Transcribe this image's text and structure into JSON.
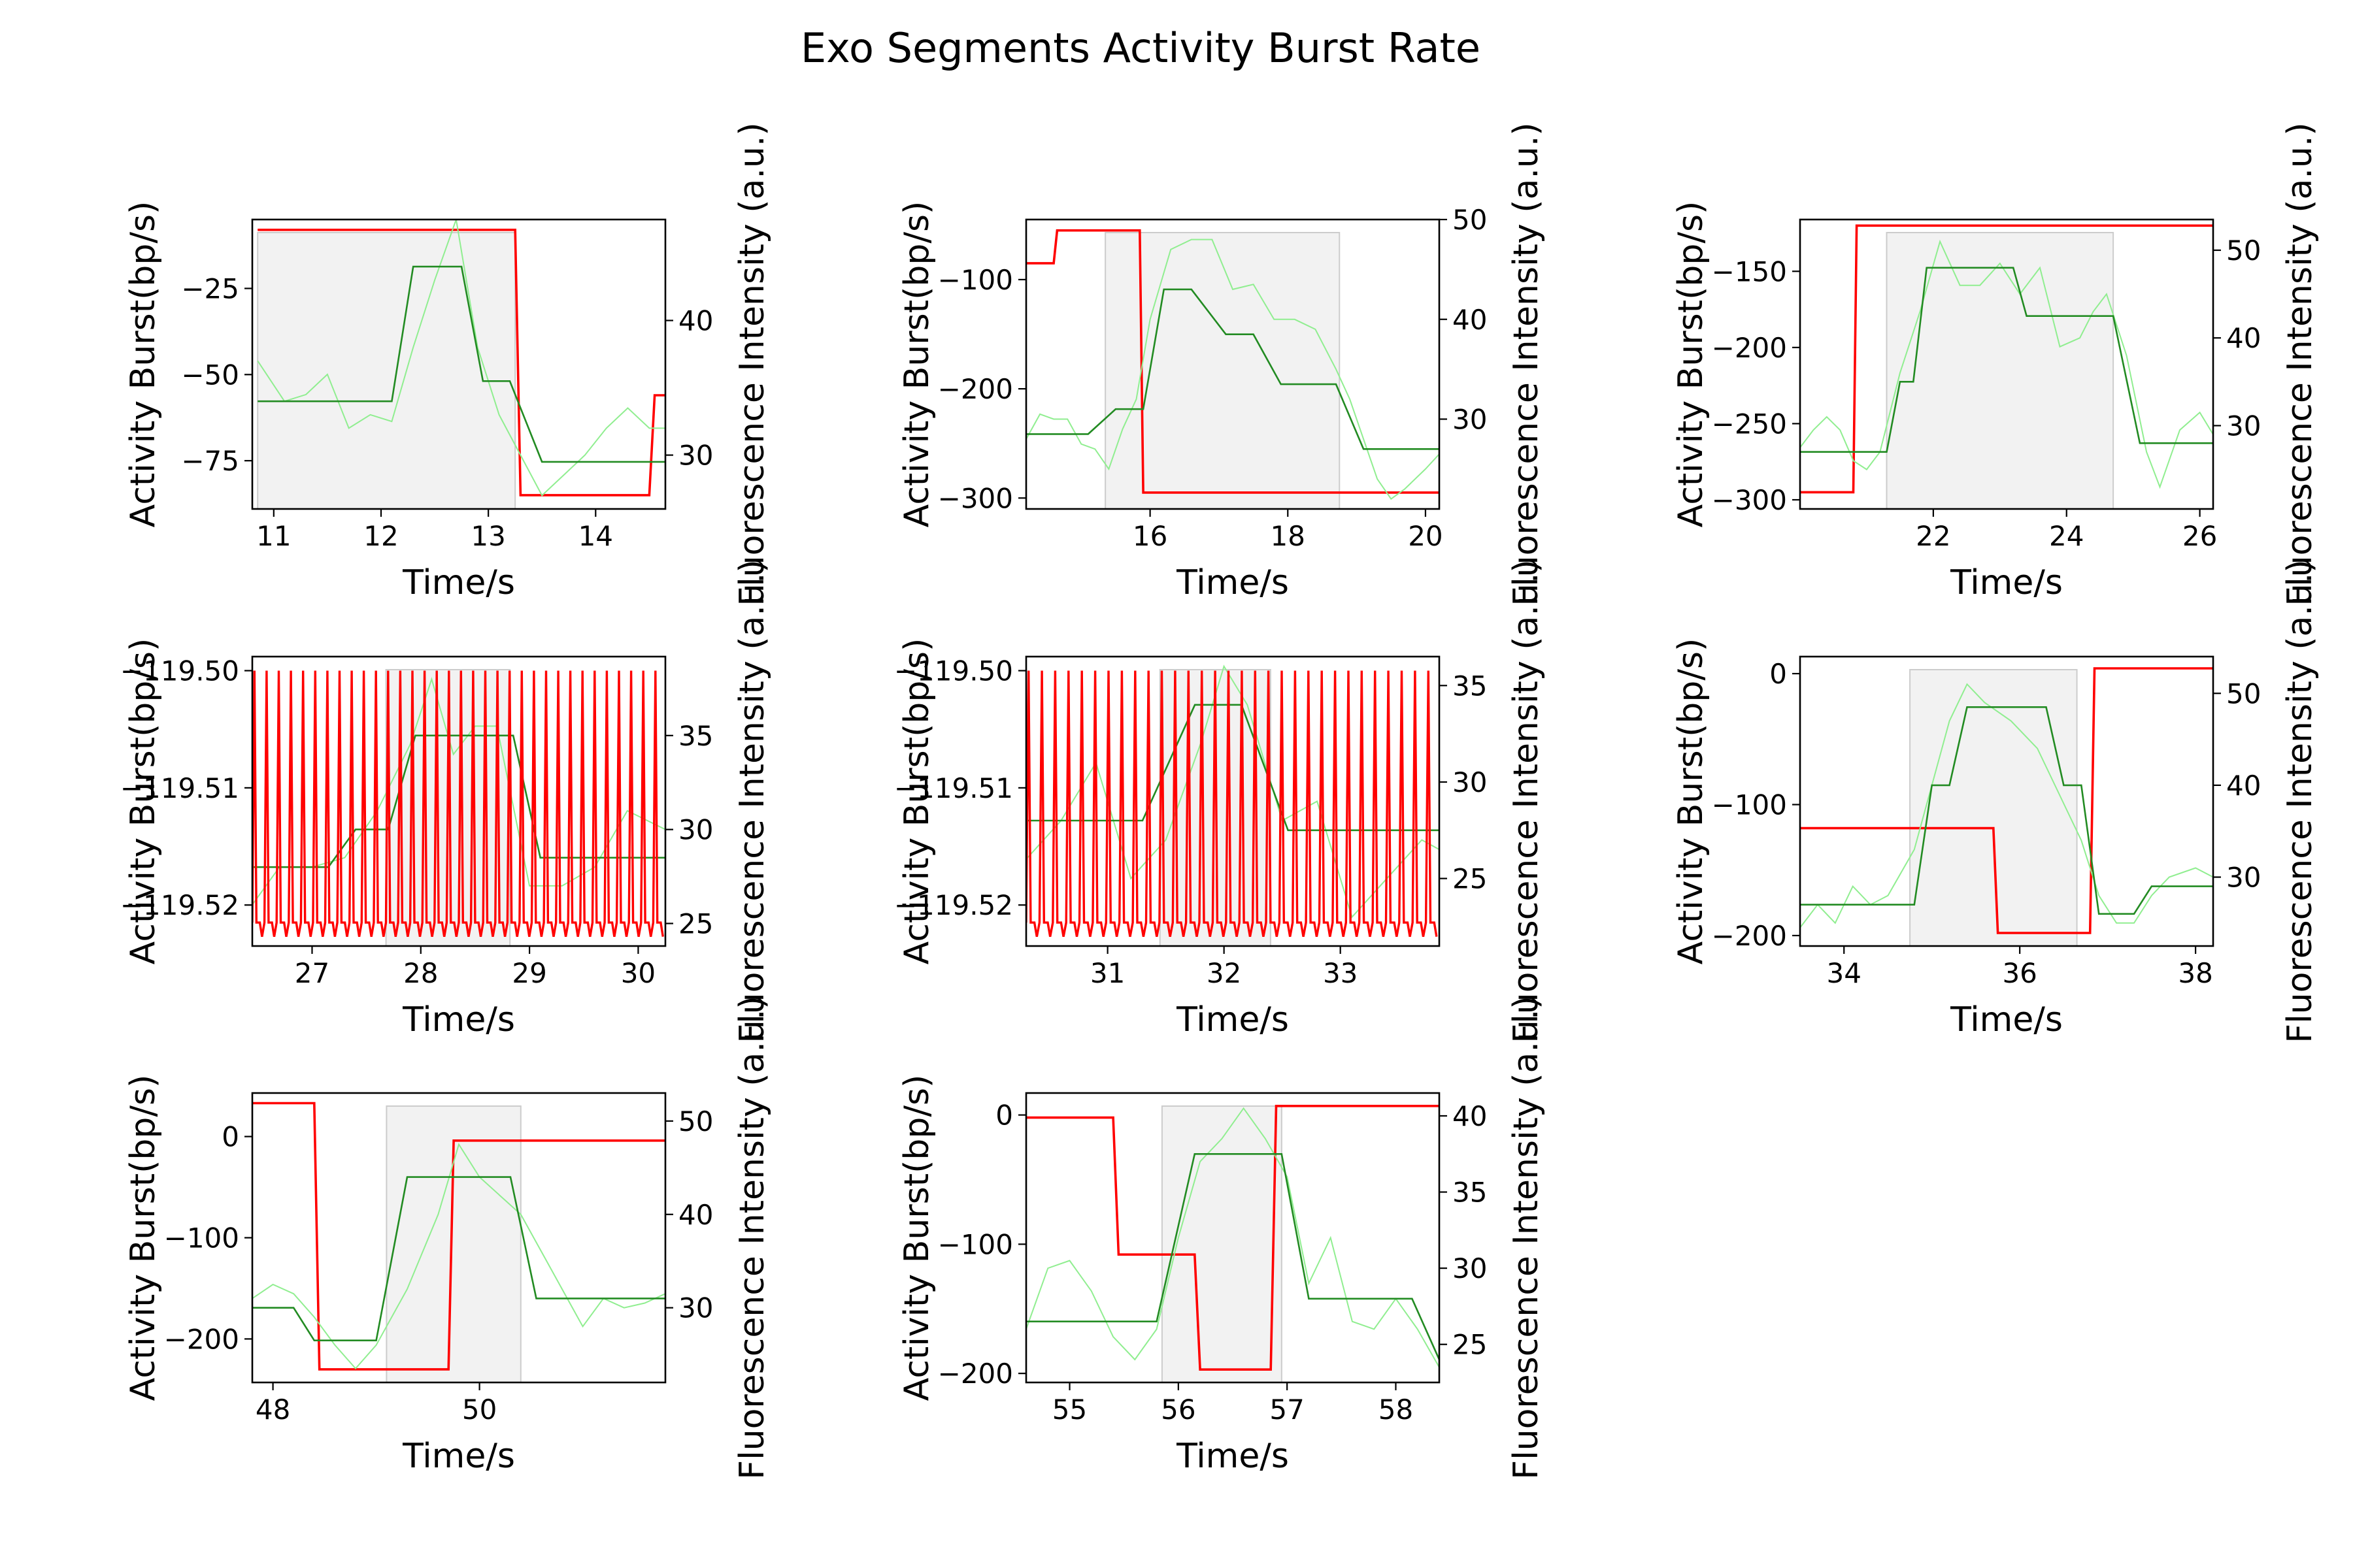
{
  "title": "Exo Segments Activity Burst Rate",
  "colors": {
    "burst": "#ff0000",
    "fluor_raw": "#90ee90",
    "fluor_step": "#228b22",
    "shade": "#e5e5e5",
    "axes": "#000000"
  },
  "chart_data": [
    {
      "type": "line",
      "xlabel": "Time/s",
      "ylabel_left": "Activity Burst(bp/s)",
      "ylabel_right": "Fluorescence Intensity (a.u.)",
      "xlim": [
        10.8,
        14.65
      ],
      "ylim_left": [
        -89,
        -5
      ],
      "ylim_right": [
        26,
        47.5
      ],
      "xticks": [
        11,
        12,
        13,
        14
      ],
      "yticks_left": [
        -75,
        -50,
        -25
      ],
      "yticks_right": [
        30,
        40
      ],
      "shade": [
        10.85,
        13.25
      ],
      "series": [
        {
          "axis": "left",
          "color": "#ff0000",
          "x": [
            10.85,
            13.25,
            13.3,
            14.5,
            14.55,
            14.65
          ],
          "y": [
            -8,
            -8,
            -85,
            -85,
            -56,
            -56
          ]
        },
        {
          "axis": "right",
          "color": "#90ee90",
          "x": [
            10.85,
            11.1,
            11.3,
            11.5,
            11.7,
            11.9,
            12.1,
            12.3,
            12.5,
            12.7,
            12.9,
            13.1,
            13.3,
            13.5,
            13.7,
            13.9,
            14.1,
            14.3,
            14.5,
            14.65
          ],
          "y": [
            37,
            34,
            34.5,
            36,
            32,
            33,
            32.5,
            38,
            43,
            47.5,
            38,
            33,
            30,
            27,
            28.5,
            30,
            32,
            33.5,
            32,
            32
          ]
        },
        {
          "axis": "right",
          "color": "#228b22",
          "x": [
            10.85,
            12.1,
            12.3,
            12.75,
            12.95,
            13.2,
            13.5,
            14.65
          ],
          "y": [
            34,
            34,
            44,
            44,
            35.5,
            35.5,
            29.5,
            29.5
          ]
        }
      ]
    },
    {
      "type": "line",
      "xlabel": "Time/s",
      "ylabel_left": "Activity Burst(bp/s)",
      "ylabel_right": "Fluorescence Intensity (a.u.)",
      "xlim": [
        14.2,
        20.2
      ],
      "ylim_left": [
        -310,
        -45
      ],
      "ylim_right": [
        21,
        50
      ],
      "xticks": [
        16,
        18,
        20
      ],
      "yticks_left": [
        -300,
        -200,
        -100
      ],
      "yticks_right": [
        30,
        40,
        50
      ],
      "shade": [
        15.35,
        18.75
      ],
      "series": [
        {
          "axis": "left",
          "color": "#ff0000",
          "x": [
            14.2,
            14.6,
            14.65,
            15.85,
            15.9,
            20.2
          ],
          "y": [
            -85,
            -85,
            -55,
            -55,
            -295,
            -295
          ]
        },
        {
          "axis": "right",
          "color": "#90ee90",
          "x": [
            14.2,
            14.4,
            14.6,
            14.8,
            15.0,
            15.2,
            15.4,
            15.6,
            15.8,
            16.0,
            16.3,
            16.6,
            16.9,
            17.2,
            17.5,
            17.8,
            18.1,
            18.4,
            18.7,
            18.9,
            19.1,
            19.3,
            19.5,
            19.7,
            20.0,
            20.2
          ],
          "y": [
            28,
            30.5,
            30,
            30,
            27.5,
            27,
            25,
            29,
            32,
            40,
            47,
            48,
            48,
            43,
            43.5,
            40,
            40,
            39,
            35,
            32,
            28,
            24,
            22,
            23,
            25,
            26.5
          ]
        },
        {
          "axis": "right",
          "color": "#228b22",
          "x": [
            14.2,
            15.1,
            15.5,
            15.9,
            16.2,
            16.6,
            17.1,
            17.5,
            17.9,
            18.7,
            19.1,
            20.2
          ],
          "y": [
            28.5,
            28.5,
            31,
            31,
            43,
            43,
            38.5,
            38.5,
            33.5,
            33.5,
            27,
            27
          ]
        }
      ]
    },
    {
      "type": "line",
      "xlabel": "Time/s",
      "ylabel_left": "Activity Burst(bp/s)",
      "ylabel_right": "Fluorescence Intensity (a.u.)",
      "xlim": [
        20.0,
        26.2
      ],
      "ylim_left": [
        -306,
        -116
      ],
      "ylim_right": [
        20.5,
        53.5
      ],
      "xticks": [
        22,
        24,
        26
      ],
      "yticks_left": [
        -300,
        -250,
        -200,
        -150
      ],
      "yticks_right": [
        30,
        40,
        50
      ],
      "shade": [
        21.3,
        24.7
      ],
      "series": [
        {
          "axis": "left",
          "color": "#ff0000",
          "x": [
            20.0,
            20.8,
            20.85,
            26.2
          ],
          "y": [
            -295,
            -295,
            -120,
            -120
          ]
        },
        {
          "axis": "right",
          "color": "#90ee90",
          "x": [
            20.0,
            20.2,
            20.4,
            20.6,
            20.8,
            21.0,
            21.2,
            21.5,
            21.8,
            22.1,
            22.4,
            22.7,
            23.0,
            23.3,
            23.6,
            23.9,
            24.2,
            24.4,
            24.6,
            24.9,
            25.2,
            25.4,
            25.7,
            26.0,
            26.2
          ],
          "y": [
            27.5,
            29.5,
            31,
            29.5,
            26,
            25,
            27,
            36,
            43,
            51,
            46,
            46,
            48.5,
            45,
            48,
            39,
            40,
            43,
            45,
            38,
            27,
            23,
            29.5,
            31.5,
            29
          ]
        },
        {
          "axis": "right",
          "color": "#228b22",
          "x": [
            20.0,
            21.3,
            21.5,
            21.7,
            21.9,
            23.2,
            23.4,
            24.7,
            25.1,
            26.2
          ],
          "y": [
            27,
            27,
            35,
            35,
            48,
            48,
            42.5,
            42.5,
            28,
            28
          ]
        }
      ]
    },
    {
      "type": "line",
      "xlabel": "Time/s",
      "ylabel_left": "Activity Burst(bp/s)",
      "ylabel_right": "Fluorescence Intensity (a.u.)",
      "xlim": [
        26.45,
        30.25
      ],
      "ylim_left": [
        -119.5235,
        -119.4988
      ],
      "ylim_right": [
        23.8,
        39.2
      ],
      "xticks": [
        27,
        28,
        29,
        30
      ],
      "yticks_left": [
        -119.52,
        -119.51,
        -119.5
      ],
      "yticks_right": [
        25,
        30,
        35
      ],
      "shade": [
        27.68,
        28.82
      ],
      "oscillation": {
        "axis": "left",
        "color": "#ff0000",
        "x_start": 26.45,
        "x_end": 30.25,
        "count": 34,
        "high": -119.5,
        "low": -119.5215,
        "dip": -119.5227
      },
      "series": [
        {
          "axis": "right",
          "color": "#90ee90",
          "x": [
            26.45,
            26.7,
            27.0,
            27.3,
            27.6,
            27.9,
            28.1,
            28.3,
            28.5,
            28.7,
            29.0,
            29.3,
            29.6,
            29.9,
            30.25
          ],
          "y": [
            26,
            28,
            28,
            28.5,
            31,
            34.5,
            38,
            34,
            35.5,
            35.5,
            27,
            27,
            28,
            31,
            30
          ]
        },
        {
          "axis": "right",
          "color": "#228b22",
          "x": [
            26.45,
            27.15,
            27.4,
            27.7,
            27.95,
            28.85,
            29.1,
            30.25
          ],
          "y": [
            28,
            28,
            30,
            30,
            35,
            35,
            28.5,
            28.5
          ]
        }
      ]
    },
    {
      "type": "line",
      "xlabel": "Time/s",
      "ylabel_left": "Activity Burst(bp/s)",
      "ylabel_right": "Fluorescence Intensity (a.u.)",
      "xlim": [
        30.3,
        33.85
      ],
      "ylim_left": [
        -119.5235,
        -119.4988
      ],
      "ylim_right": [
        21.5,
        36.5
      ],
      "xticks": [
        31,
        32,
        33
      ],
      "yticks_left": [
        -119.52,
        -119.51,
        -119.5
      ],
      "yticks_right": [
        25,
        30,
        35
      ],
      "shade": [
        31.45,
        32.4
      ],
      "oscillation": {
        "axis": "left",
        "color": "#ff0000",
        "x_start": 30.3,
        "x_end": 33.85,
        "count": 31,
        "high": -119.5,
        "low": -119.5215,
        "dip": -119.5227
      },
      "series": [
        {
          "axis": "right",
          "color": "#90ee90",
          "x": [
            30.3,
            30.6,
            30.9,
            31.2,
            31.5,
            31.8,
            32.0,
            32.2,
            32.5,
            32.8,
            33.1,
            33.4,
            33.7,
            33.85
          ],
          "y": [
            26,
            28,
            31,
            25,
            27,
            32,
            36,
            34,
            28,
            29,
            23,
            25,
            27,
            26.5
          ]
        },
        {
          "axis": "right",
          "color": "#228b22",
          "x": [
            30.3,
            31.3,
            31.75,
            32.15,
            32.55,
            33.85
          ],
          "y": [
            28,
            28,
            34,
            34,
            27.5,
            27.5
          ]
        }
      ]
    },
    {
      "type": "line",
      "xlabel": "Time/s",
      "ylabel_left": "Activity Burst(bp/s)",
      "ylabel_right": "Fluorescence Intensity (a.u.)",
      "xlim": [
        33.5,
        38.2
      ],
      "ylim_left": [
        -208,
        13
      ],
      "ylim_right": [
        22.5,
        54
      ],
      "xticks": [
        34,
        36,
        38
      ],
      "yticks_left": [
        -200,
        -100,
        0
      ],
      "yticks_right": [
        30,
        40,
        50
      ],
      "shade": [
        34.75,
        36.65
      ],
      "series": [
        {
          "axis": "left",
          "color": "#ff0000",
          "x": [
            33.5,
            35.7,
            35.75,
            36.8,
            36.85,
            38.2
          ],
          "y": [
            -118,
            -118,
            -198,
            -198,
            4,
            4
          ]
        },
        {
          "axis": "right",
          "color": "#90ee90",
          "x": [
            33.5,
            33.7,
            33.9,
            34.1,
            34.3,
            34.5,
            34.8,
            35.0,
            35.2,
            35.4,
            35.6,
            35.9,
            36.2,
            36.5,
            36.7,
            36.9,
            37.1,
            37.3,
            37.5,
            37.7,
            38.0,
            38.2
          ],
          "y": [
            24.5,
            27,
            25,
            29,
            27,
            28,
            33,
            40,
            47,
            51,
            49,
            47,
            44,
            38,
            34,
            28,
            25,
            25,
            28,
            30,
            31,
            30
          ]
        },
        {
          "axis": "right",
          "color": "#228b22",
          "x": [
            33.5,
            34.8,
            35.0,
            35.2,
            35.4,
            36.3,
            36.5,
            36.7,
            36.9,
            37.3,
            37.5,
            38.2
          ],
          "y": [
            27,
            27,
            40,
            40,
            48.5,
            48.5,
            40,
            40,
            26,
            26,
            29,
            29
          ]
        }
      ]
    },
    {
      "type": "line",
      "xlabel": "Time/s",
      "ylabel_left": "Activity Burst(bp/s)",
      "ylabel_right": "Fluorescence Intensity (a.u.)",
      "xlim": [
        47.8,
        51.8
      ],
      "ylim_left": [
        -243,
        43
      ],
      "ylim_right": [
        22,
        53
      ],
      "xticks": [
        48,
        50
      ],
      "yticks_left": [
        -200,
        -100,
        0
      ],
      "yticks_right": [
        30,
        40,
        50
      ],
      "shade": [
        49.1,
        50.4
      ],
      "series": [
        {
          "axis": "left",
          "color": "#ff0000",
          "x": [
            47.8,
            48.4,
            48.45,
            49.7,
            49.75,
            51.8
          ],
          "y": [
            33,
            33,
            -230,
            -230,
            -4,
            -4
          ]
        },
        {
          "axis": "right",
          "color": "#90ee90",
          "x": [
            47.8,
            48.0,
            48.2,
            48.4,
            48.6,
            48.8,
            49.0,
            49.3,
            49.6,
            49.8,
            50.0,
            50.2,
            50.4,
            50.6,
            50.8,
            51.0,
            51.2,
            51.4,
            51.6,
            51.8
          ],
          "y": [
            31,
            32.5,
            31.5,
            29,
            26,
            23.5,
            26,
            32,
            40,
            47.5,
            44,
            42,
            40,
            36,
            32,
            28,
            31,
            30,
            30.5,
            31.5
          ]
        },
        {
          "axis": "right",
          "color": "#228b22",
          "x": [
            47.8,
            48.2,
            48.4,
            49.0,
            49.3,
            50.3,
            50.55,
            51.8
          ],
          "y": [
            30,
            30,
            26.5,
            26.5,
            44,
            44,
            31,
            31
          ]
        }
      ]
    },
    {
      "type": "line",
      "xlabel": "Time/s",
      "ylabel_left": "Activity Burst(bp/s)",
      "ylabel_right": "Fluorescence Intensity (a.u.)",
      "xlim": [
        54.6,
        58.4
      ],
      "ylim_left": [
        -207,
        17
      ],
      "ylim_right": [
        22.5,
        41.5
      ],
      "xticks": [
        55,
        56,
        57,
        58
      ],
      "yticks_left": [
        -200,
        -100,
        0
      ],
      "yticks_right": [
        25,
        30,
        35,
        40
      ],
      "shade": [
        55.85,
        56.95
      ],
      "series": [
        {
          "axis": "left",
          "color": "#ff0000",
          "x": [
            54.6,
            55.4,
            55.45,
            56.15,
            56.2,
            56.85,
            56.9,
            58.4
          ],
          "y": [
            -2,
            -2,
            -108,
            -108,
            -197,
            -197,
            7,
            7
          ]
        },
        {
          "axis": "right",
          "color": "#90ee90",
          "x": [
            54.6,
            54.8,
            55.0,
            55.2,
            55.4,
            55.6,
            55.8,
            56.0,
            56.2,
            56.4,
            56.6,
            56.8,
            57.0,
            57.2,
            57.4,
            57.6,
            57.8,
            58.0,
            58.2,
            58.4
          ],
          "y": [
            26,
            30,
            30.5,
            28.5,
            25.5,
            24,
            26,
            32,
            37,
            38.5,
            40.5,
            38.5,
            36,
            29,
            32,
            26.5,
            26,
            28,
            26,
            23.5
          ]
        },
        {
          "axis": "right",
          "color": "#228b22",
          "x": [
            54.6,
            55.8,
            56.15,
            56.95,
            57.2,
            58.15,
            58.4
          ],
          "y": [
            26.5,
            26.5,
            37.5,
            37.5,
            28,
            28,
            24
          ]
        }
      ]
    }
  ]
}
